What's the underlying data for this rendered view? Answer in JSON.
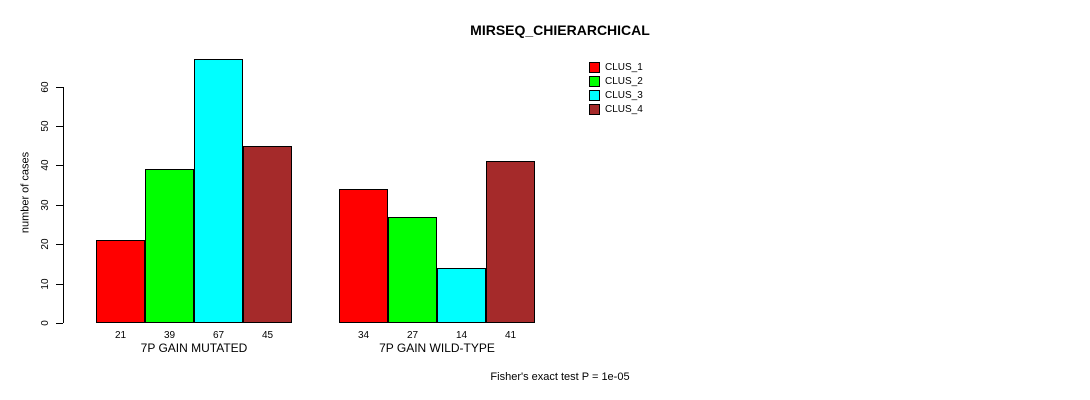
{
  "chart_data": {
    "type": "bar",
    "title": "MIRSEQ_CHIERARCHICAL",
    "ylabel": "number of cases",
    "xlabel": "",
    "categories": [
      "7P GAIN MUTATED",
      "7P GAIN WILD-TYPE"
    ],
    "series": [
      {
        "name": "CLUS_1",
        "color": "#FF0000",
        "values": [
          21,
          34
        ]
      },
      {
        "name": "CLUS_2",
        "color": "#00FF00",
        "values": [
          39,
          27
        ]
      },
      {
        "name": "CLUS_3",
        "color": "#00FFFF",
        "values": [
          67,
          14
        ]
      },
      {
        "name": "CLUS_4",
        "color": "#A52A2A",
        "values": [
          45,
          41
        ]
      }
    ],
    "bar_value_labels": [
      [
        21,
        39,
        67,
        45
      ],
      [
        34,
        27,
        14,
        41
      ]
    ],
    "yticks": [
      0,
      10,
      20,
      30,
      40,
      50,
      60
    ],
    "ylim": [
      0,
      67
    ],
    "grid": false,
    "legend_position": "top-right",
    "legend_entries": [
      "CLUS_1",
      "CLUS_2",
      "CLUS_3",
      "CLUS_4"
    ],
    "annotation": "Fisher's exact test P = 1e-05"
  },
  "colors": {
    "background": "#FFFFFF",
    "axis": "#000000",
    "clus_1": "#FF0000",
    "clus_2": "#00FF00",
    "clus_3": "#00FFFF",
    "clus_4": "#A52A2A"
  }
}
